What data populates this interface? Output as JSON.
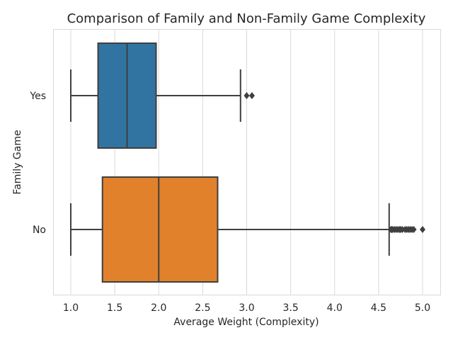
{
  "chart_data": {
    "type": "boxplot",
    "orientation": "horizontal",
    "title": "Comparison of Family and Non-Family Game Complexity",
    "xlabel": "Average Weight (Complexity)",
    "ylabel": "Family Game",
    "xlim": [
      0.9,
      5.05
    ],
    "xticks": [
      1.0,
      1.5,
      2.0,
      2.5,
      3.0,
      3.5,
      4.0,
      4.5,
      5.0
    ],
    "grid": "vertical",
    "categories": [
      "Yes",
      "No"
    ],
    "boxes": [
      {
        "category": "Yes",
        "color": "#3274a1",
        "whisker_low": 1.0,
        "q1": 1.31,
        "median": 1.64,
        "q3": 1.97,
        "whisker_high": 2.93,
        "outliers": [
          3.0,
          3.06
        ]
      },
      {
        "category": "No",
        "color": "#e1812c",
        "whisker_low": 1.0,
        "q1": 1.36,
        "median": 2.0,
        "q3": 2.67,
        "whisker_high": 4.62,
        "outliers": [
          4.64,
          4.65,
          4.66,
          4.68,
          4.7,
          4.72,
          4.74,
          4.75,
          4.77,
          4.8,
          4.82,
          4.84,
          4.86,
          4.88,
          4.9,
          5.0
        ]
      }
    ]
  }
}
